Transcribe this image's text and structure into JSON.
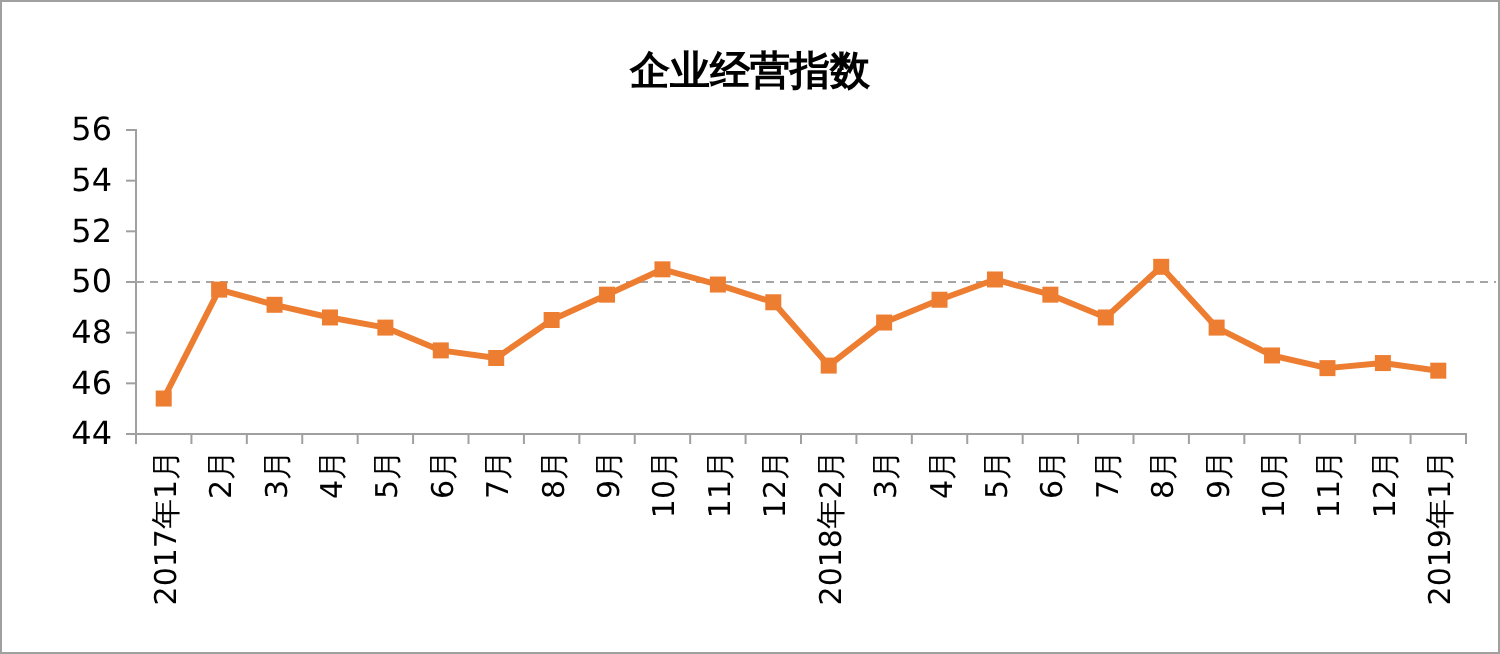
{
  "chart_data": {
    "type": "line",
    "title": "企业经营指数",
    "categories": [
      "2017年1月",
      "2月",
      "3月",
      "4月",
      "5月",
      "6月",
      "7月",
      "8月",
      "9月",
      "10月",
      "11月",
      "12月",
      "2018年2月",
      "3月",
      "4月",
      "5月",
      "6月",
      "7月",
      "8月",
      "9月",
      "10月",
      "11月",
      "12月",
      "2019年1月"
    ],
    "series": [
      {
        "color": "#ed7d31",
        "values": [
          45.4,
          49.7,
          49.1,
          48.6,
          48.2,
          47.3,
          47.0,
          48.5,
          49.5,
          50.5,
          49.9,
          49.2,
          46.7,
          48.4,
          49.3,
          50.1,
          49.5,
          48.6,
          50.6,
          48.2,
          47.1,
          46.6,
          46.8,
          46.5
        ]
      }
    ],
    "ylim": [
      44,
      56
    ],
    "yticks": [
      44,
      46,
      48,
      50,
      52,
      54,
      56
    ],
    "ref_lines": [
      {
        "axis": "y",
        "value": 50,
        "color": "#a6a6a6",
        "line_style": "dashed"
      }
    ],
    "marker": "square",
    "line_style": "solid"
  }
}
